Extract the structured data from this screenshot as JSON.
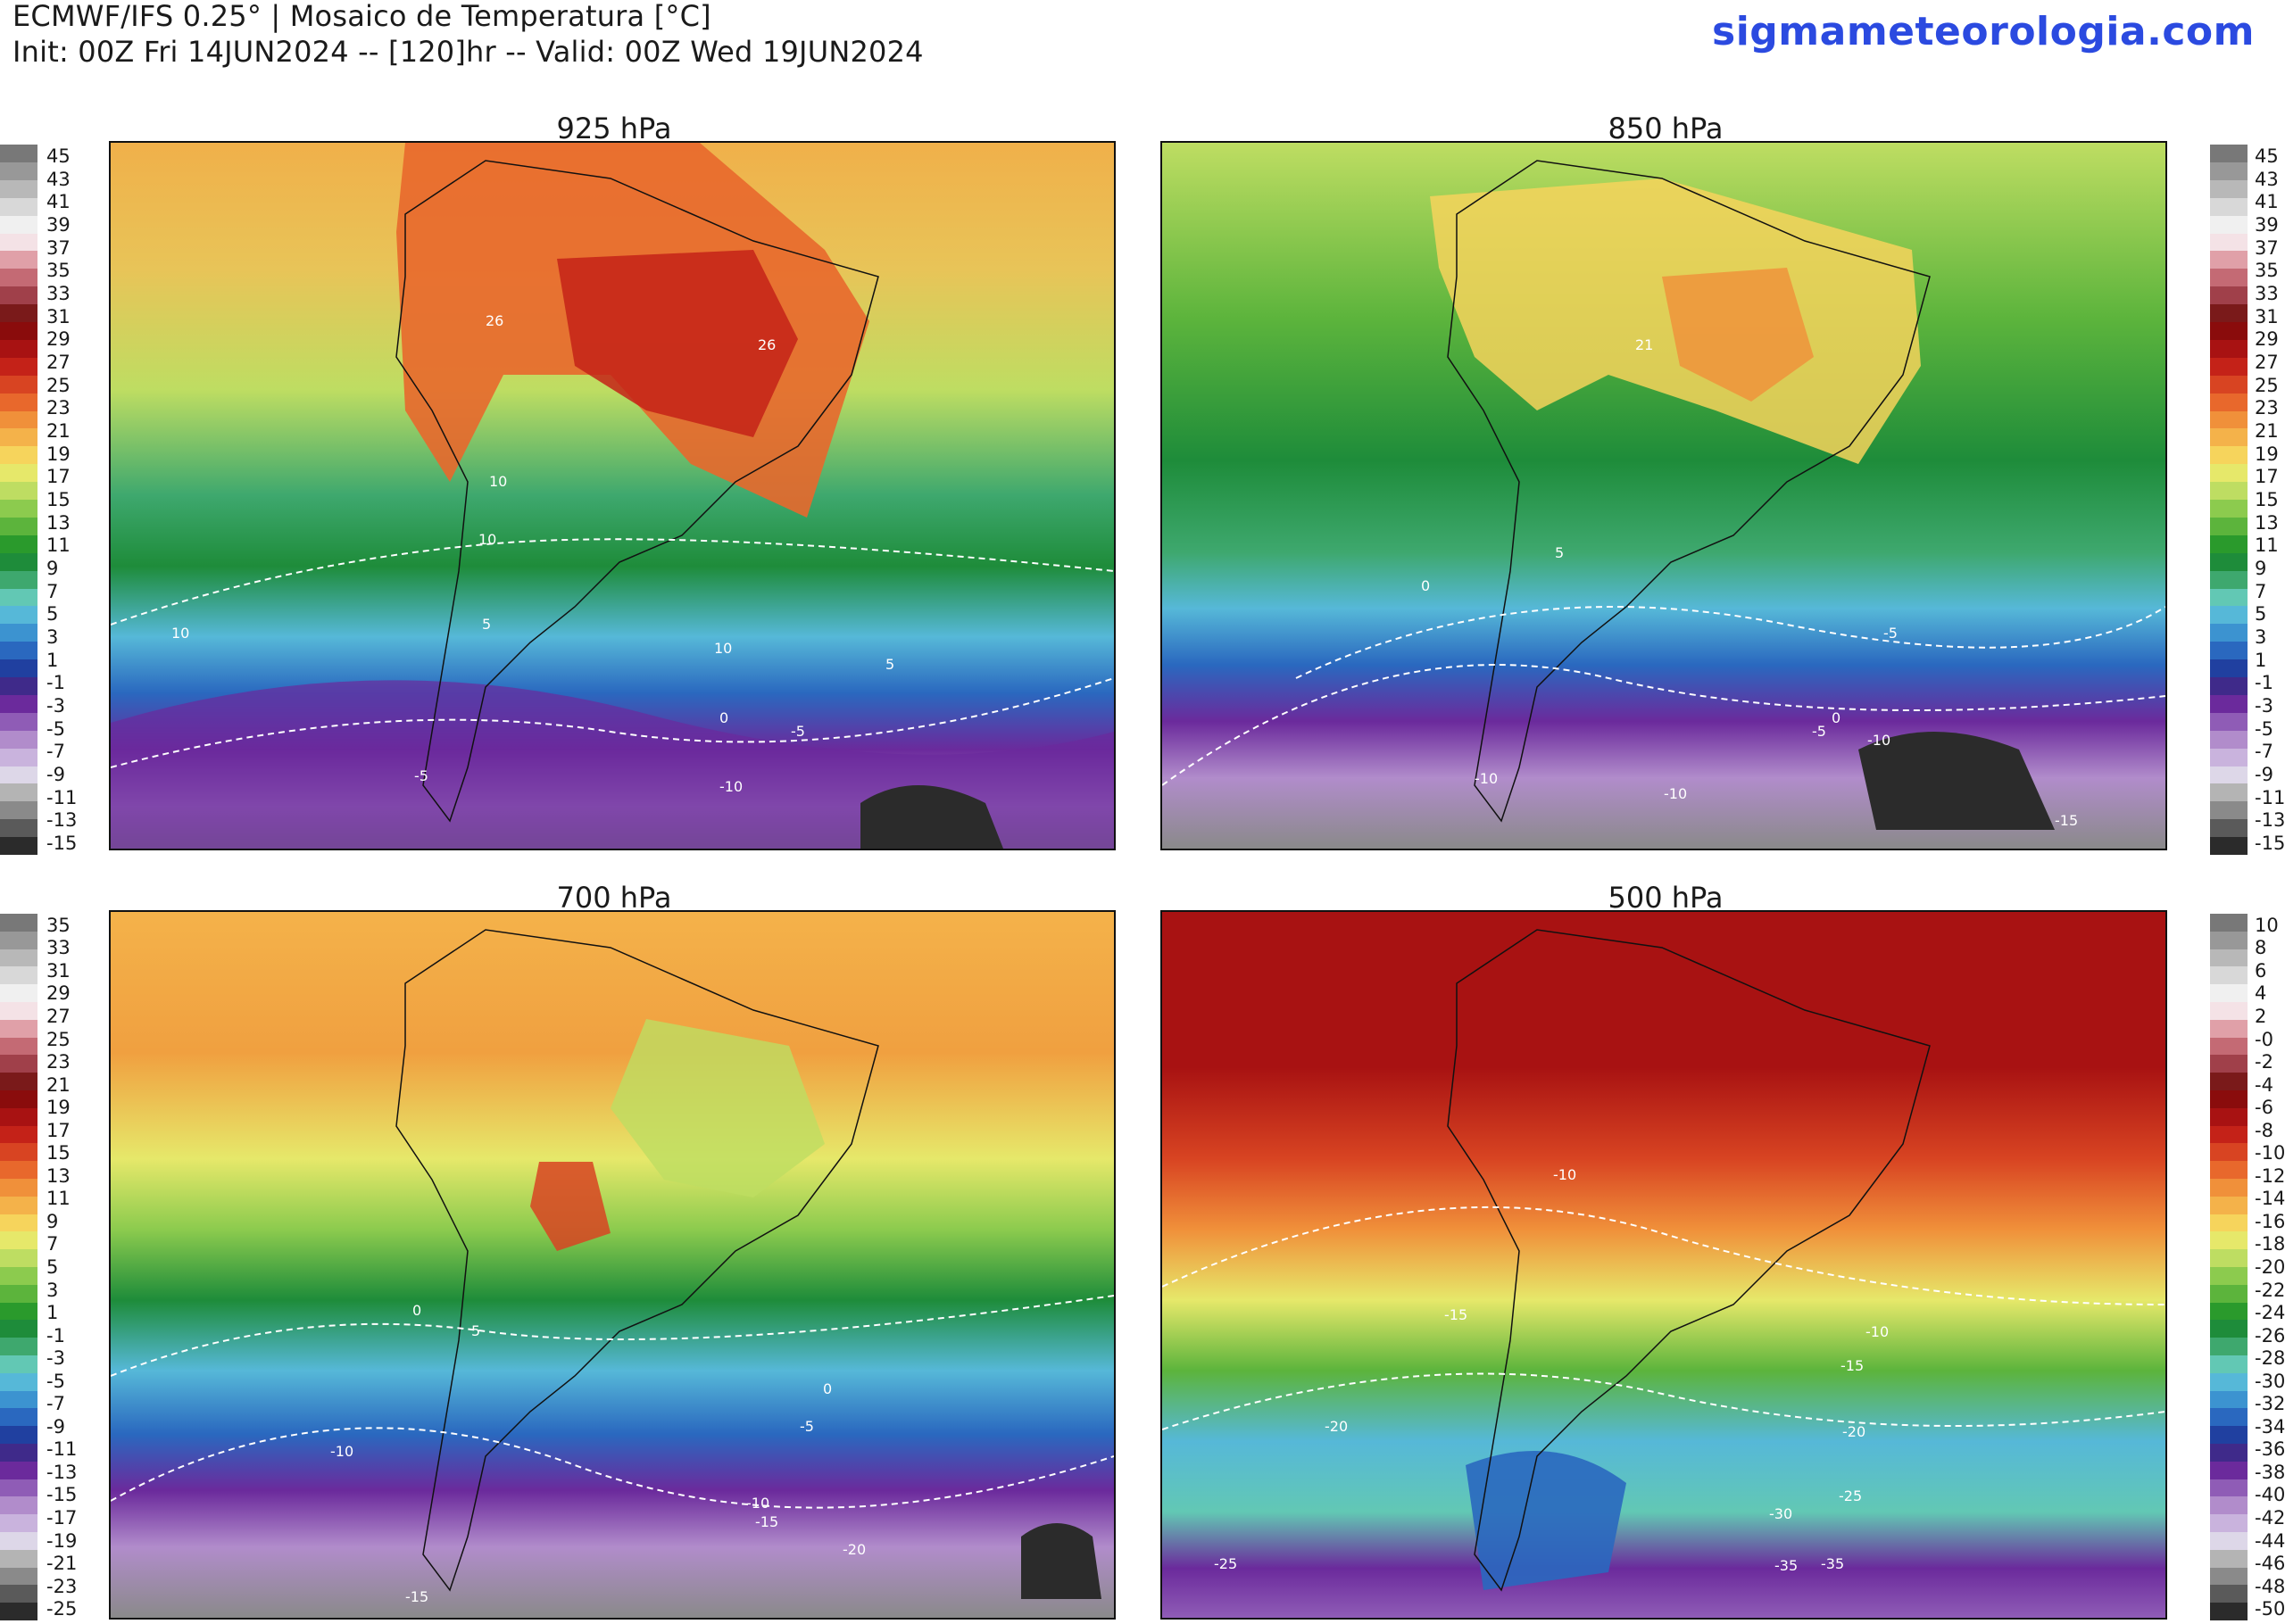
{
  "header": {
    "line1": "ECMWF/IFS 0.25° | Mosaico de Temperatura [°C]",
    "line2": "Init: 00Z Fri 14JUN2024 -- [120]hr -- Valid: 00Z Wed 19JUN2024",
    "brand": "sigmameteorologia.com"
  },
  "colors": {
    "brand": "#2b4ae0",
    "scale": [
      "#2b2b2b",
      "#5a5a5a",
      "#8a8a8a",
      "#b4b4b4",
      "#ddd7e8",
      "#c9b3dd",
      "#b18ccb",
      "#8f5cb6",
      "#6b2a9c",
      "#3f2a8a",
      "#2040a0",
      "#2a68bf",
      "#3c93d0",
      "#56b8d8",
      "#62c8b4",
      "#3ea86e",
      "#1e8c3a",
      "#2a9a2c",
      "#5cb43c",
      "#8ccb4e",
      "#bedd62",
      "#e6e86a",
      "#f6d45c",
      "#f4b24a",
      "#f0903a",
      "#e8682c",
      "#d84422",
      "#c42218",
      "#a81212",
      "#8a0c0c",
      "#7a1a1a",
      "#a0404a",
      "#c46a74",
      "#e0a0a8",
      "#f4e2e6",
      "#f0f0f0",
      "#d8d8d8",
      "#b8b8b8",
      "#989898",
      "#787878"
    ]
  },
  "panels": [
    {
      "title": "925 hPa",
      "scale_labels": [
        "45",
        "43",
        "41",
        "39",
        "37",
        "35",
        "33",
        "31",
        "29",
        "27",
        "25",
        "23",
        "21",
        "19",
        "17",
        "15",
        "13",
        "11",
        "9",
        "7",
        "5",
        "3",
        "1",
        "-1",
        "-3",
        "-5",
        "-7",
        "-9",
        "-11",
        "-13",
        "-15"
      ],
      "contour_labels": [
        "26",
        "26",
        "10",
        "10",
        "10",
        "5",
        "10",
        "5",
        "0",
        "-5",
        "-5",
        "-10"
      ]
    },
    {
      "title": "850 hPa",
      "scale_labels": [
        "45",
        "43",
        "41",
        "39",
        "37",
        "35",
        "33",
        "31",
        "29",
        "27",
        "25",
        "23",
        "21",
        "19",
        "17",
        "15",
        "13",
        "11",
        "9",
        "7",
        "5",
        "3",
        "1",
        "-1",
        "-3",
        "-5",
        "-7",
        "-9",
        "-11",
        "-13",
        "-15"
      ],
      "contour_labels": [
        "21",
        "5",
        "0",
        "-5",
        "0",
        "-5",
        "-10",
        "-10",
        "-10",
        "-15"
      ]
    },
    {
      "title": "700 hPa",
      "scale_labels": [
        "35",
        "33",
        "31",
        "29",
        "27",
        "25",
        "23",
        "21",
        "19",
        "17",
        "15",
        "13",
        "11",
        "9",
        "7",
        "5",
        "3",
        "1",
        "-1",
        "-3",
        "-5",
        "-7",
        "-9",
        "-11",
        "-13",
        "-15",
        "-17",
        "-19",
        "-21",
        "-23",
        "-25"
      ],
      "contour_labels": [
        "0",
        "5",
        "0",
        "-5",
        "-10",
        "-10",
        "-15",
        "-20",
        "-15"
      ]
    },
    {
      "title": "500 hPa",
      "scale_labels": [
        "10",
        "8",
        "6",
        "4",
        "2",
        "-0",
        "-2",
        "-4",
        "-6",
        "-8",
        "-10",
        "-12",
        "-14",
        "-16",
        "-18",
        "-20",
        "-22",
        "-24",
        "-26",
        "-28",
        "-30",
        "-32",
        "-34",
        "-36",
        "-38",
        "-40",
        "-42",
        "-44",
        "-46",
        "-48",
        "-50"
      ],
      "contour_labels": [
        "-10",
        "-15",
        "-10",
        "-15",
        "-20",
        "-20",
        "-25",
        "-30",
        "-35",
        "-35",
        "-25"
      ]
    }
  ]
}
